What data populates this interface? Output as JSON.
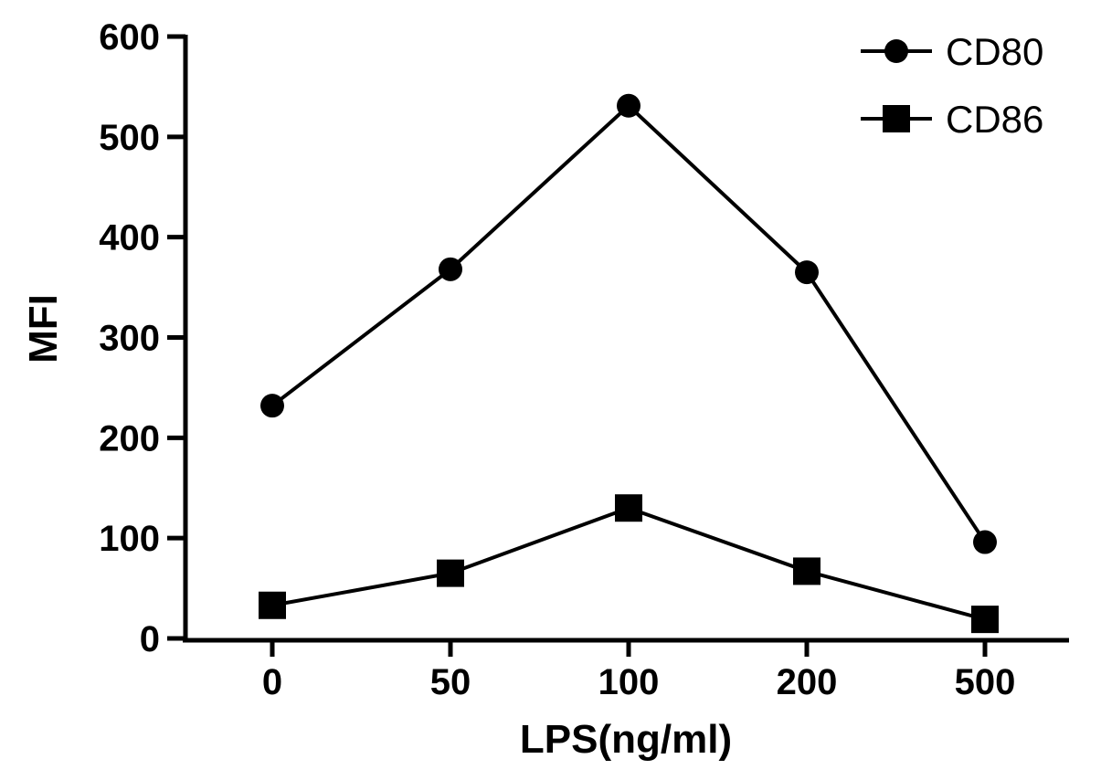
{
  "chart_data": {
    "type": "line",
    "xlabel": "LPS(ng/ml)",
    "ylabel": "MFI",
    "categories": [
      "0",
      "50",
      "100",
      "200",
      "500"
    ],
    "ylim": [
      0,
      600
    ],
    "yticks": [
      "0",
      "100",
      "200",
      "300",
      "400",
      "500",
      "600"
    ],
    "grid": false,
    "legend_position": "top-right",
    "series": [
      {
        "name": "CD80",
        "marker": "circle",
        "color": "#000000",
        "values": [
          232,
          368,
          531,
          365,
          96
        ]
      },
      {
        "name": "CD86",
        "marker": "square",
        "color": "#000000",
        "values": [
          33,
          65,
          130,
          67,
          19
        ]
      }
    ]
  }
}
